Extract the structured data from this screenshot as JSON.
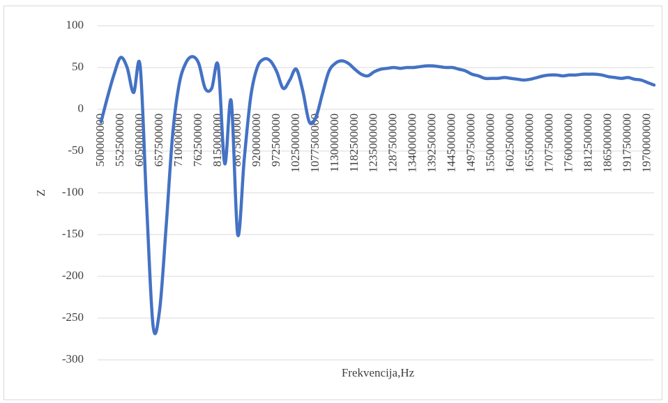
{
  "chart_data": {
    "type": "line",
    "x_label": "Frekvencija,Hz",
    "y_label": "Z",
    "color": "#4472c4",
    "grid": true,
    "ylim": [
      -300,
      100
    ],
    "yticks": [
      -300,
      -250,
      -200,
      -150,
      -100,
      -50,
      0,
      50,
      100
    ],
    "categories": [
      500000000,
      null,
      null,
      552500000,
      null,
      null,
      605000000,
      null,
      null,
      657500000,
      null,
      null,
      710000000,
      null,
      null,
      762500000,
      null,
      null,
      815000000,
      null,
      null,
      867500000,
      null,
      null,
      920000000,
      null,
      null,
      972500000,
      null,
      null,
      1025000000,
      null,
      null,
      1077500000,
      null,
      null,
      1130000000,
      null,
      null,
      1182500000,
      null,
      null,
      1235000000,
      null,
      null,
      1287500000,
      null,
      null,
      1340000000,
      null,
      null,
      1392500000,
      null,
      null,
      1445000000,
      null,
      null,
      1497500000,
      null,
      null,
      1550000000,
      null,
      null,
      1602500000,
      null,
      null,
      1655000000,
      null,
      null,
      1707500000,
      null,
      null,
      1760000000,
      null,
      null,
      1812500000,
      null,
      null,
      1865000000,
      null,
      null,
      1917500000,
      null,
      null,
      1970000000,
      null
    ],
    "values": [
      -15,
      15,
      42,
      62,
      50,
      20,
      52,
      -115,
      -260,
      -240,
      -140,
      -30,
      30,
      55,
      63,
      55,
      25,
      25,
      52,
      -65,
      10,
      -150,
      -60,
      15,
      50,
      60,
      58,
      45,
      25,
      35,
      48,
      22,
      -15,
      -10,
      18,
      45,
      55,
      58,
      55,
      48,
      42,
      40,
      45,
      48,
      49,
      50,
      49,
      50,
      50,
      51,
      52,
      52,
      51,
      50,
      50,
      48,
      46,
      42,
      40,
      37,
      37,
      37,
      38,
      37,
      36,
      35,
      36,
      38,
      40,
      41,
      41,
      40,
      41,
      41,
      42,
      42,
      42,
      41,
      39,
      38,
      37,
      38,
      36,
      35,
      32,
      29
    ]
  }
}
